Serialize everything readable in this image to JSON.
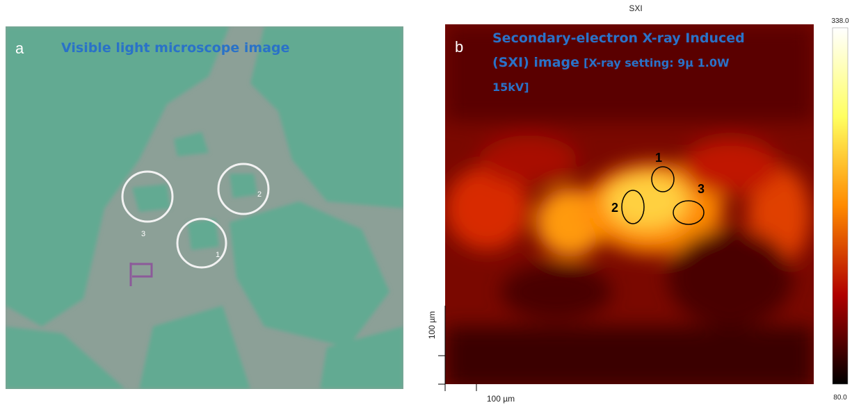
{
  "panel_a": {
    "label": "a",
    "title": "Visible light microscope image",
    "markers": [
      "1",
      "2",
      "3"
    ]
  },
  "panel_b": {
    "header": "SXI",
    "label": "b",
    "title_lines": [
      "Secondary-electron X-ray Induced",
      "(SXI) image",
      "[X-ray setting: 9µ  1.0W",
      "15kV]"
    ],
    "regions": [
      "1",
      "2",
      "3"
    ],
    "scale_y": "100 µm",
    "scale_x": "100 µm",
    "colorbar": {
      "max": "338.0",
      "min": "80.0"
    }
  }
}
